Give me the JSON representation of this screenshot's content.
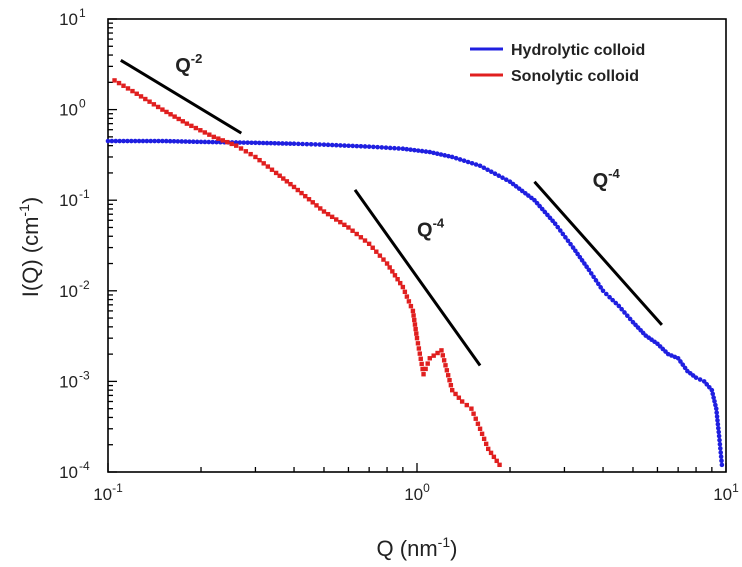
{
  "chart_data": {
    "type": "scatter",
    "xlabel": {
      "base": "Q (nm",
      "sup": "-1",
      "end": ")"
    },
    "ylabel": {
      "base": "I(Q) (cm",
      "sup": "-1",
      "end": ")"
    },
    "xscale": "log",
    "yscale": "log",
    "xlim": [
      0.1,
      10
    ],
    "ylim": [
      0.0001,
      10
    ],
    "x_ticks": [
      {
        "value": 0.1,
        "base": "10",
        "exp": "-1"
      },
      {
        "value": 1,
        "base": "10",
        "exp": "0"
      },
      {
        "value": 10,
        "base": "10",
        "exp": "1"
      }
    ],
    "y_ticks": [
      {
        "value": 0.0001,
        "base": "10",
        "exp": "-4"
      },
      {
        "value": 0.001,
        "base": "10",
        "exp": "-3"
      },
      {
        "value": 0.01,
        "base": "10",
        "exp": "-2"
      },
      {
        "value": 0.1,
        "base": "10",
        "exp": "-1"
      },
      {
        "value": 1,
        "base": "10",
        "exp": "0"
      },
      {
        "value": 10,
        "base": "10",
        "exp": "1"
      }
    ],
    "grid": false,
    "legend_position": "top-right",
    "series": [
      {
        "name": "Hydrolytic colloid",
        "color": "#1f1fe0",
        "marker": "circle",
        "points": [
          [
            0.1,
            0.45
          ],
          [
            0.15,
            0.45
          ],
          [
            0.2,
            0.44
          ],
          [
            0.3,
            0.43
          ],
          [
            0.4,
            0.42
          ],
          [
            0.5,
            0.41
          ],
          [
            0.7,
            0.39
          ],
          [
            0.9,
            0.37
          ],
          [
            1.1,
            0.34
          ],
          [
            1.3,
            0.3
          ],
          [
            1.6,
            0.24
          ],
          [
            2.0,
            0.16
          ],
          [
            2.4,
            0.1
          ],
          [
            2.8,
            0.055
          ],
          [
            3.2,
            0.03
          ],
          [
            3.6,
            0.017
          ],
          [
            4.0,
            0.01
          ],
          [
            4.2,
            0.0085
          ],
          [
            4.5,
            0.0068
          ],
          [
            5.0,
            0.0045
          ],
          [
            5.5,
            0.0032
          ],
          [
            6.0,
            0.0026
          ],
          [
            6.5,
            0.002
          ],
          [
            7.0,
            0.0018
          ],
          [
            7.5,
            0.0013
          ],
          [
            8.0,
            0.0011
          ],
          [
            8.5,
            0.001
          ],
          [
            9.0,
            0.0008
          ],
          [
            9.3,
            0.0005
          ],
          [
            9.5,
            0.00025
          ],
          [
            9.7,
            0.00012
          ]
        ]
      },
      {
        "name": "Sonolytic colloid",
        "color": "#e01f1f",
        "marker": "square",
        "points": [
          [
            0.105,
            2.1
          ],
          [
            0.12,
            1.6
          ],
          [
            0.15,
            1.0
          ],
          [
            0.18,
            0.7
          ],
          [
            0.22,
            0.5
          ],
          [
            0.26,
            0.4
          ],
          [
            0.3,
            0.3
          ],
          [
            0.35,
            0.2
          ],
          [
            0.4,
            0.14
          ],
          [
            0.5,
            0.075
          ],
          [
            0.6,
            0.05
          ],
          [
            0.7,
            0.033
          ],
          [
            0.8,
            0.02
          ],
          [
            0.9,
            0.011
          ],
          [
            0.97,
            0.006
          ],
          [
            1.0,
            0.003
          ],
          [
            1.05,
            0.0012
          ],
          [
            1.1,
            0.0018
          ],
          [
            1.2,
            0.0022
          ],
          [
            1.3,
            0.0008
          ],
          [
            1.4,
            0.0006
          ],
          [
            1.5,
            0.0005
          ],
          [
            1.6,
            0.0003
          ],
          [
            1.7,
            0.00018
          ],
          [
            1.85,
            0.00012
          ]
        ]
      }
    ],
    "annotations": [
      {
        "base": "Q",
        "sup": "-2",
        "line": [
          [
            0.11,
            3.5
          ],
          [
            0.27,
            0.55
          ]
        ],
        "label_at": [
          0.165,
          2.6
        ]
      },
      {
        "base": "Q",
        "sup": "-4",
        "line": [
          [
            0.63,
            0.13
          ],
          [
            1.6,
            0.0015
          ]
        ],
        "label_at": [
          1.0,
          0.04
        ]
      },
      {
        "base": "Q",
        "sup": "-4",
        "line": [
          [
            2.4,
            0.16
          ],
          [
            6.2,
            0.0042
          ]
        ],
        "label_at": [
          3.7,
          0.14
        ]
      }
    ]
  }
}
